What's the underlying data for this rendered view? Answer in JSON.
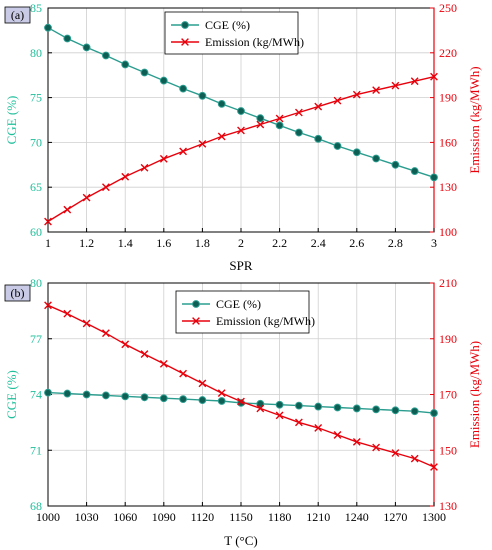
{
  "colors": {
    "cge": "#2a9d8f",
    "cge_marker": "#0f5e54",
    "cge_axis": "#1fbf9a",
    "emission": "#e8000b",
    "axis": "#000000",
    "grid": "#cfcfcf",
    "panel_label_bg": "#c9cbe6"
  },
  "chart_data": [
    {
      "type": "line",
      "panel_label": "(a)",
      "xlabel": "SPR",
      "ylabel_left": "CGE  (%)",
      "ylabel_right": "Emission  (kg/MWh)",
      "xlim": [
        1,
        3
      ],
      "xticks": [
        1,
        1.2,
        1.4,
        1.6,
        1.8,
        2,
        2.2,
        2.4,
        2.6,
        2.8,
        3
      ],
      "xtick_labels": [
        "1",
        "1.2",
        "1.4",
        "1.6",
        "1.8",
        "2",
        "2.2",
        "2.4",
        "2.6",
        "2.8",
        "3"
      ],
      "ylim_left": [
        60,
        85
      ],
      "yticks_left": [
        "60",
        "65",
        "70",
        "75",
        "80",
        "85"
      ],
      "ylim_right": [
        100,
        250
      ],
      "yticks_right": [
        "100",
        "130",
        "160",
        "190",
        "220",
        "250"
      ],
      "grid": true,
      "legend_position": "top-center",
      "x": [
        1,
        1.1,
        1.2,
        1.3,
        1.4,
        1.5,
        1.6,
        1.7,
        1.8,
        1.9,
        2,
        2.1,
        2.2,
        2.3,
        2.4,
        2.5,
        2.6,
        2.7,
        2.8,
        2.9,
        3
      ],
      "series": [
        {
          "name": "CGE (%)",
          "axis": "left",
          "marker": "circle",
          "values": [
            82.8,
            81.6,
            80.6,
            79.7,
            78.7,
            77.8,
            76.9,
            76.0,
            75.2,
            74.3,
            73.5,
            72.7,
            71.9,
            71.1,
            70.4,
            69.6,
            68.9,
            68.2,
            67.5,
            66.8,
            66.1
          ]
        },
        {
          "name": "Emission (kg/MWh)",
          "axis": "right",
          "marker": "cross",
          "values": [
            107,
            115,
            123,
            130,
            137,
            143,
            149,
            154,
            159,
            164,
            168,
            172,
            176,
            180,
            184,
            188,
            192,
            195,
            198,
            201,
            204
          ]
        }
      ]
    },
    {
      "type": "line",
      "panel_label": "(b)",
      "xlabel": "T (°C)",
      "ylabel_left": "CGE  (%)",
      "ylabel_right": "Emission  (kg/MWh)",
      "xlim": [
        1000,
        1300
      ],
      "xticks": [
        1000,
        1030,
        1060,
        1090,
        1120,
        1150,
        1180,
        1210,
        1240,
        1270,
        1300
      ],
      "xtick_labels": [
        "1000",
        "1030",
        "1060",
        "1090",
        "1120",
        "1150",
        "1180",
        "1210",
        "1240",
        "1270",
        "1300"
      ],
      "ylim_left": [
        68,
        80
      ],
      "yticks_left": [
        "68",
        "71",
        "74",
        "77",
        "80"
      ],
      "ylim_right": [
        130,
        210
      ],
      "yticks_right": [
        "130",
        "150",
        "170",
        "190",
        "210"
      ],
      "grid": true,
      "legend_position": "top-center",
      "x": [
        1000,
        1015,
        1030,
        1045,
        1060,
        1075,
        1090,
        1105,
        1120,
        1135,
        1150,
        1165,
        1180,
        1195,
        1210,
        1225,
        1240,
        1255,
        1270,
        1285,
        1300
      ],
      "series": [
        {
          "name": "CGE (%)",
          "axis": "left",
          "marker": "circle",
          "values": [
            74.1,
            74.05,
            74.0,
            73.95,
            73.9,
            73.85,
            73.8,
            73.75,
            73.7,
            73.65,
            73.55,
            73.5,
            73.45,
            73.4,
            73.35,
            73.3,
            73.25,
            73.2,
            73.15,
            73.1,
            73.0
          ]
        },
        {
          "name": "Emission (kg/MWh)",
          "axis": "right",
          "marker": "cross",
          "values": [
            202,
            199,
            195.5,
            192,
            188,
            184.5,
            181,
            177.5,
            174,
            170.5,
            167.5,
            165,
            162.5,
            160,
            158,
            155.5,
            153,
            151,
            149,
            147,
            144
          ]
        }
      ]
    }
  ]
}
